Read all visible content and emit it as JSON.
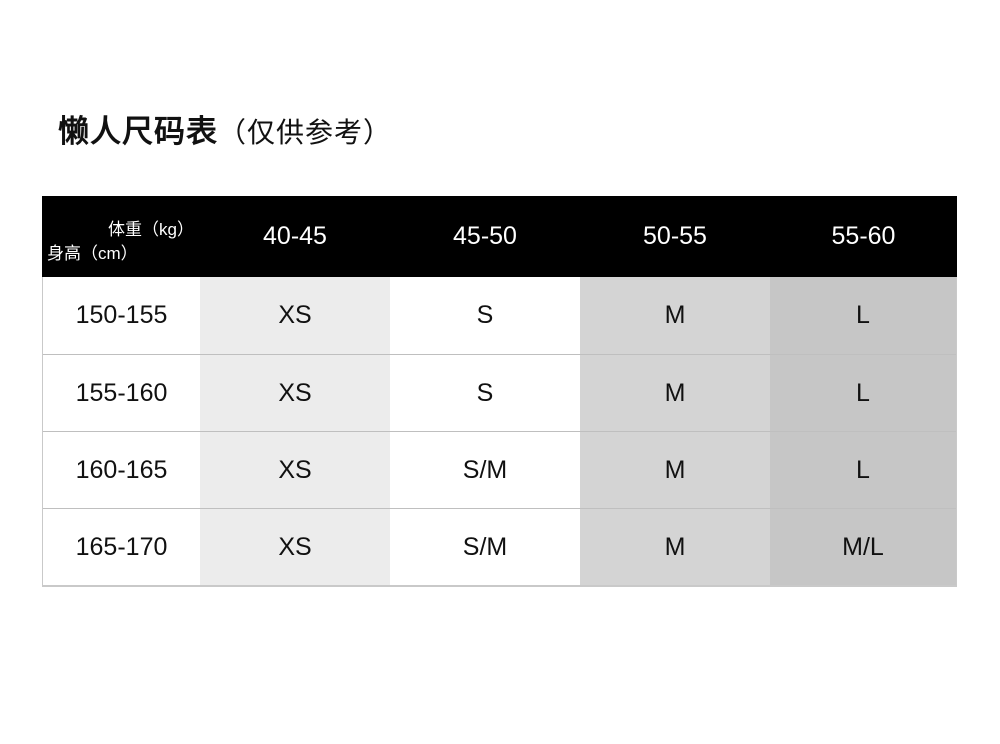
{
  "page": {
    "background": "#ffffff"
  },
  "title": {
    "main": "懒人尺码表",
    "note": "（仅供参考）"
  },
  "table": {
    "corner": {
      "weight_label": "体重（kg）",
      "height_label": "身高（cm）"
    },
    "weight_columns": [
      "40-45",
      "45-50",
      "50-55",
      "55-60"
    ],
    "rows": [
      {
        "height": "150-155",
        "sizes": [
          "XS",
          "S",
          "M",
          "L"
        ]
      },
      {
        "height": "155-160",
        "sizes": [
          "XS",
          "S",
          "M",
          "L"
        ]
      },
      {
        "height": "160-165",
        "sizes": [
          "XS",
          "S/M",
          "M",
          "L"
        ]
      },
      {
        "height": "165-170",
        "sizes": [
          "XS",
          "S/M",
          "M",
          "M/L"
        ]
      }
    ],
    "colors": {
      "header_bg": "#000000",
      "header_text": "#ffffff",
      "col_height_bg": "#ffffff",
      "col_40_45_bg": "#ececec",
      "col_45_50_bg": "#ffffff",
      "col_50_55_bg": "#d4d4d4",
      "col_55_60_bg": "#c6c6c6",
      "row_divider": "#bfbfbf",
      "outer_border": "#c9c9c9",
      "body_text": "#111111",
      "page_bg": "#ffffff"
    }
  }
}
